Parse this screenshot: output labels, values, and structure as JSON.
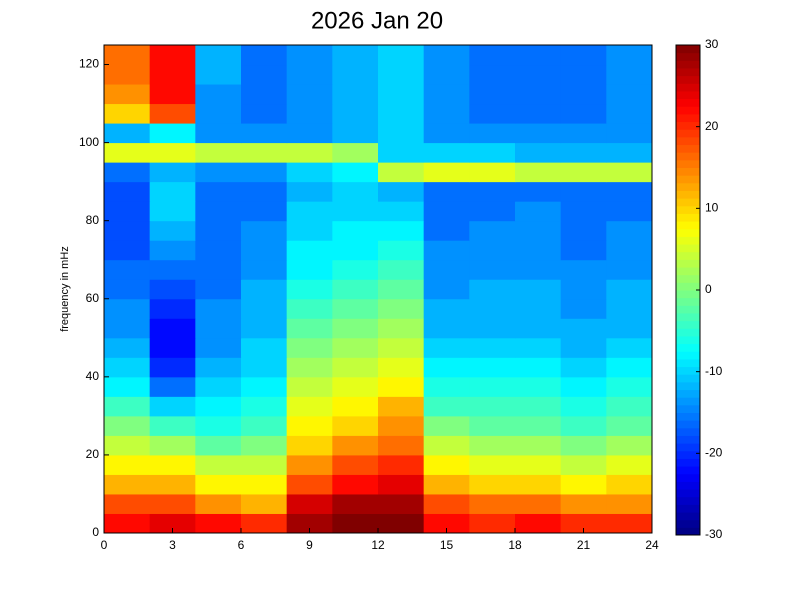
{
  "chart_data": {
    "type": "heatmap",
    "title": "2026 Jan 20",
    "ylabel": "frequency in mHz",
    "colormap": "jet",
    "xbins": [
      0,
      2,
      4,
      6,
      8,
      10,
      12,
      14,
      16,
      18,
      20,
      22,
      24
    ],
    "ybins": [
      0,
      5,
      10,
      15,
      20,
      25,
      30,
      35,
      40,
      45,
      50,
      55,
      60,
      65,
      70,
      75,
      80,
      85,
      90,
      95,
      100,
      105,
      110,
      115,
      120,
      125
    ],
    "values": [
      [
        22,
        24,
        22,
        20,
        28,
        30,
        30,
        22,
        20,
        22,
        20,
        20
      ],
      [
        18,
        18,
        14,
        12,
        25,
        28,
        28,
        18,
        16,
        16,
        14,
        14
      ],
      [
        12,
        12,
        8,
        8,
        18,
        22,
        24,
        12,
        10,
        10,
        8,
        10
      ],
      [
        8,
        8,
        4,
        4,
        14,
        18,
        20,
        8,
        6,
        6,
        4,
        6
      ],
      [
        4,
        2,
        -2,
        0,
        10,
        14,
        16,
        4,
        2,
        2,
        0,
        2
      ],
      [
        0,
        -4,
        -6,
        -4,
        8,
        10,
        14,
        0,
        -2,
        -2,
        -4,
        -2
      ],
      [
        -4,
        -10,
        -8,
        -6,
        6,
        8,
        12,
        -4,
        -4,
        -4,
        -6,
        -4
      ],
      [
        -8,
        -16,
        -10,
        -8,
        4,
        6,
        8,
        -6,
        -6,
        -6,
        -8,
        -6
      ],
      [
        -10,
        -20,
        -12,
        -10,
        2,
        4,
        6,
        -8,
        -8,
        -8,
        -10,
        -8
      ],
      [
        -12,
        -22,
        -14,
        -10,
        0,
        2,
        4,
        -10,
        -10,
        -10,
        -12,
        -10
      ],
      [
        -14,
        -22,
        -14,
        -12,
        -2,
        0,
        2,
        -12,
        -12,
        -12,
        -12,
        -12
      ],
      [
        -14,
        -20,
        -14,
        -12,
        -4,
        -2,
        0,
        -12,
        -12,
        -12,
        -14,
        -12
      ],
      [
        -16,
        -18,
        -16,
        -12,
        -6,
        -4,
        -2,
        -14,
        -12,
        -12,
        -14,
        -12
      ],
      [
        -16,
        -16,
        -16,
        -14,
        -8,
        -6,
        -4,
        -14,
        -14,
        -14,
        -14,
        -14
      ],
      [
        -18,
        -14,
        -16,
        -14,
        -8,
        -8,
        -6,
        -14,
        -14,
        -14,
        -16,
        -14
      ],
      [
        -18,
        -12,
        -16,
        -14,
        -10,
        -8,
        -8,
        -16,
        -14,
        -14,
        -16,
        -14
      ],
      [
        -18,
        -10,
        -16,
        -16,
        -10,
        -10,
        -10,
        -16,
        -16,
        -14,
        -16,
        -16
      ],
      [
        -18,
        -10,
        -16,
        -16,
        -12,
        -10,
        -12,
        -16,
        -16,
        -16,
        -16,
        -16
      ],
      [
        -16,
        -12,
        -14,
        -14,
        -10,
        -8,
        4,
        6,
        6,
        4,
        4,
        4
      ],
      [
        6,
        6,
        4,
        4,
        4,
        2,
        -10,
        -10,
        -10,
        -12,
        -12,
        -12
      ],
      [
        -12,
        -8,
        -14,
        -14,
        -14,
        -12,
        -10,
        -14,
        -14,
        -14,
        -14,
        -14
      ],
      [
        10,
        18,
        -14,
        -16,
        -14,
        -12,
        -10,
        -14,
        -16,
        -16,
        -16,
        -14
      ],
      [
        14,
        22,
        -14,
        -16,
        -14,
        -12,
        -10,
        -14,
        -16,
        -16,
        -16,
        -14
      ],
      [
        16,
        22,
        -12,
        -16,
        -14,
        -12,
        -10,
        -14,
        -16,
        -16,
        -16,
        -14
      ],
      [
        16,
        22,
        -12,
        -16,
        -14,
        -12,
        -10,
        -14,
        -16,
        -16,
        -16,
        -14
      ]
    ],
    "xlim": [
      0,
      24
    ],
    "xticks": [
      0,
      3,
      6,
      9,
      12,
      15,
      18,
      21,
      24
    ],
    "ylim": [
      0,
      125
    ],
    "yticks": [
      0,
      20,
      40,
      60,
      80,
      100,
      120
    ],
    "clim": [
      -30,
      30
    ],
    "cticks": [
      -30,
      -20,
      -10,
      0,
      10,
      20,
      30
    ]
  }
}
